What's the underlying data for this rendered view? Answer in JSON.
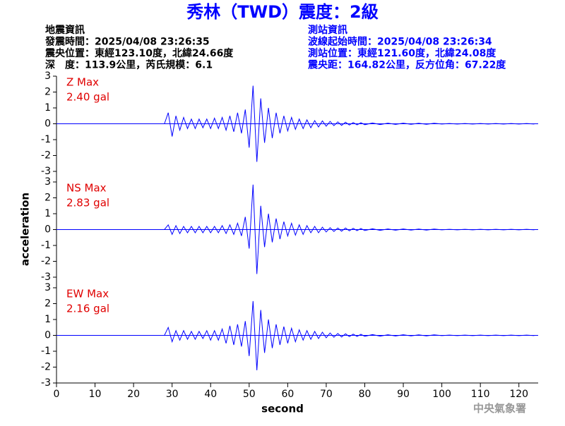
{
  "chart_data": {
    "type": "line",
    "title": "秀林（TWD）震度：2級",
    "header_left": [
      "地震資訊",
      "發震時間：2025/04/08 23:26:35",
      "震央位置：東經123.10度，北緯24.66度",
      "深　度：113.9公里，芮氏規模：6.1"
    ],
    "header_right": [
      "測站資訊",
      "波線起始時間：2025/04/08 23:26:34",
      "測站位置：東經121.60度，北緯24.08度",
      "震央距：164.82公里，反方位角：67.22度"
    ],
    "xlabel": "second",
    "ylabel": "acceleration",
    "credit": "中央氣象署",
    "xlim": [
      0,
      125
    ],
    "xticks": [
      0,
      10,
      20,
      30,
      40,
      50,
      60,
      70,
      80,
      90,
      100,
      110,
      120
    ],
    "ylim": [
      -3,
      3
    ],
    "yticks": [
      -3,
      -2,
      -1,
      0,
      1,
      2,
      3
    ],
    "x": [
      0,
      28,
      29,
      30,
      31,
      32,
      33,
      34,
      35,
      36,
      37,
      38,
      39,
      40,
      41,
      42,
      43,
      44,
      45,
      46,
      47,
      48,
      49,
      50,
      51,
      52,
      53,
      54,
      55,
      56,
      57,
      58,
      59,
      60,
      61,
      62,
      63,
      64,
      65,
      66,
      67,
      68,
      69,
      70,
      71,
      72,
      73,
      74,
      75,
      76,
      77,
      78,
      79,
      80,
      82,
      84,
      86,
      88,
      90,
      92,
      94,
      96,
      98,
      100,
      102,
      104,
      106,
      108,
      110,
      112,
      114,
      116,
      118,
      120,
      122,
      124
    ],
    "series": [
      {
        "name": "Z Max",
        "max_label": "2.40 gal",
        "color": "#0000ff",
        "values": [
          0,
          0,
          0.7,
          -0.8,
          0.5,
          -0.4,
          0.4,
          -0.3,
          0.3,
          -0.3,
          0.3,
          -0.25,
          0.3,
          -0.3,
          0.35,
          -0.3,
          0.4,
          -0.4,
          0.5,
          -0.5,
          0.7,
          -0.6,
          0.9,
          -1.5,
          2.4,
          -2.4,
          1.6,
          -1.2,
          1.0,
          -0.9,
          0.7,
          -0.6,
          0.5,
          -0.45,
          0.4,
          -0.35,
          0.3,
          -0.3,
          0.25,
          -0.25,
          0.2,
          -0.2,
          0.18,
          -0.15,
          0.15,
          -0.12,
          0.12,
          -0.1,
          0.1,
          -0.08,
          0.08,
          -0.07,
          0.07,
          -0.06,
          0.05,
          -0.05,
          0.04,
          -0.04,
          0.04,
          -0.03,
          0.03,
          -0.03,
          0.03,
          -0.02,
          0.02,
          -0.02,
          0.02,
          -0.02,
          0.02,
          -0.02,
          0.02,
          -0.02,
          0.02,
          -0.02,
          0.02,
          -0.02
        ]
      },
      {
        "name": "NS Max",
        "max_label": "2.83 gal",
        "color": "#0000ff",
        "values": [
          0,
          0,
          0.3,
          -0.3,
          0.25,
          -0.25,
          0.2,
          -0.2,
          0.2,
          -0.2,
          0.2,
          -0.2,
          0.2,
          -0.2,
          0.2,
          -0.2,
          0.25,
          -0.25,
          0.3,
          -0.3,
          0.4,
          -0.4,
          0.8,
          -1.2,
          2.83,
          -2.8,
          1.5,
          -1.1,
          1.0,
          -0.8,
          0.7,
          -0.6,
          0.5,
          -0.4,
          0.4,
          -0.35,
          0.3,
          -0.3,
          0.25,
          -0.2,
          0.2,
          -0.2,
          0.15,
          -0.15,
          0.12,
          -0.12,
          0.1,
          -0.1,
          0.1,
          -0.08,
          0.08,
          -0.07,
          0.07,
          -0.06,
          0.05,
          -0.05,
          0.04,
          -0.04,
          0.04,
          -0.03,
          0.03,
          -0.03,
          0.03,
          -0.02,
          0.02,
          -0.02,
          0.02,
          -0.02,
          0.02,
          -0.02,
          0.02,
          -0.02,
          0.02,
          -0.02,
          0.02,
          -0.02
        ]
      },
      {
        "name": "EW Max",
        "max_label": "2.16 gal",
        "color": "#0000ff",
        "values": [
          0,
          0,
          0.5,
          -0.4,
          0.3,
          -0.3,
          0.3,
          -0.25,
          0.25,
          -0.25,
          0.25,
          -0.2,
          0.3,
          -0.3,
          0.3,
          -0.3,
          0.4,
          -0.5,
          0.6,
          -0.6,
          0.7,
          -0.7,
          0.9,
          -1.3,
          2.16,
          -2.2,
          1.6,
          -1.1,
          1.0,
          -0.8,
          0.7,
          -0.6,
          0.55,
          -0.5,
          0.45,
          -0.4,
          0.35,
          -0.3,
          0.3,
          -0.25,
          0.25,
          -0.2,
          0.2,
          -0.15,
          0.15,
          -0.12,
          0.12,
          -0.1,
          0.1,
          -0.08,
          0.08,
          -0.07,
          0.07,
          -0.06,
          0.05,
          -0.05,
          0.04,
          -0.04,
          0.04,
          -0.03,
          0.03,
          -0.03,
          0.03,
          -0.02,
          0.02,
          -0.02,
          0.02,
          -0.02,
          0.02,
          -0.02,
          0.02,
          -0.02,
          0.02,
          -0.02,
          0.02,
          -0.02
        ]
      }
    ]
  }
}
